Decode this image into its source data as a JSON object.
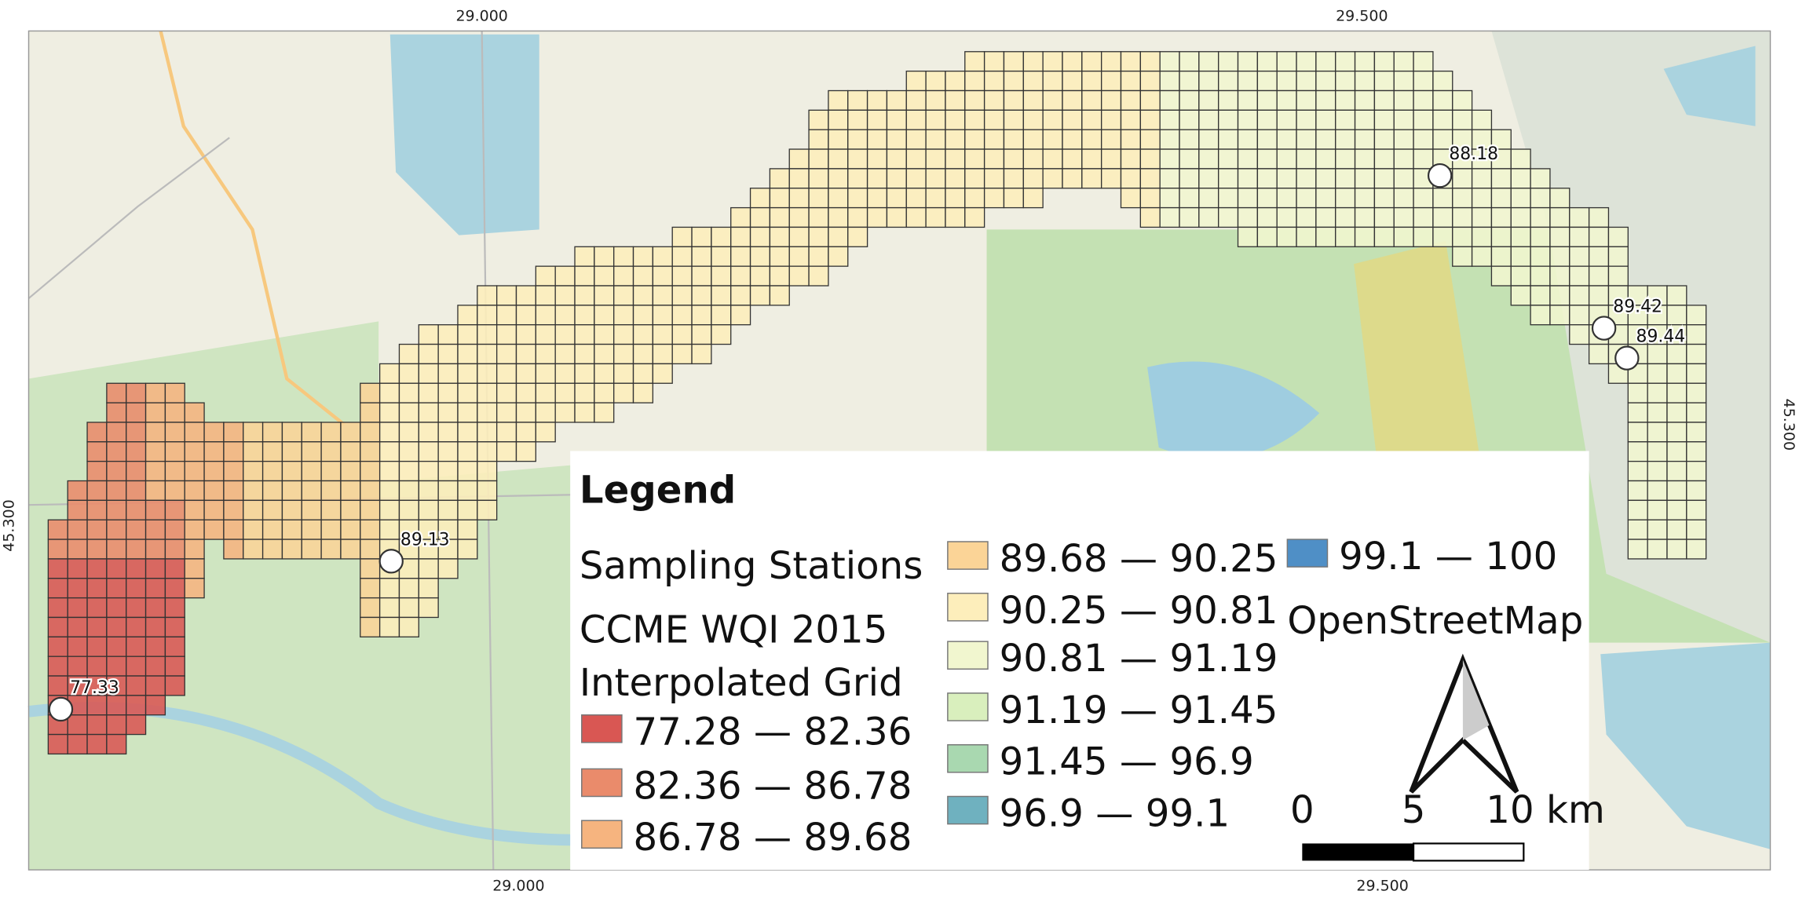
{
  "map": {
    "coordinates": {
      "top": [
        "29.000",
        "29.500"
      ],
      "bottom": [
        "29.000",
        "29.500"
      ],
      "left": "45.300",
      "right": "45.300"
    },
    "stations": [
      "77.33",
      "89.13",
      "88.18",
      "89.42",
      "89.44"
    ],
    "legend": {
      "title": "Legend",
      "stations": "Sampling Stations",
      "grid_title": [
        "CCME WQI 2015",
        "Interpolated Grid"
      ],
      "classes": [
        {
          "label": "77.28 — 82.36",
          "color": "#d95753"
        },
        {
          "label": "82.36 — 86.78",
          "color": "#ea8b6b"
        },
        {
          "label": "86.78 — 89.68",
          "color": "#f6b47f"
        },
        {
          "label": "89.68 — 90.25",
          "color": "#fbd497"
        },
        {
          "label": "90.25 — 90.81",
          "color": "#fdeebb"
        },
        {
          "label": "90.81 — 91.19",
          "color": "#f1f6cf"
        },
        {
          "label": "91.19 — 91.45",
          "color": "#d9efbd"
        },
        {
          "label": "91.45 — 96.9",
          "color": "#a9d8b0"
        },
        {
          "label": "96.9 — 99.1",
          "color": "#6fb1bf"
        },
        {
          "label": "99.1 — 100",
          "color": "#4f8fc6"
        }
      ],
      "basemap": "OpenStreetMap",
      "scale": [
        "0",
        "5",
        "10 km"
      ]
    }
  }
}
